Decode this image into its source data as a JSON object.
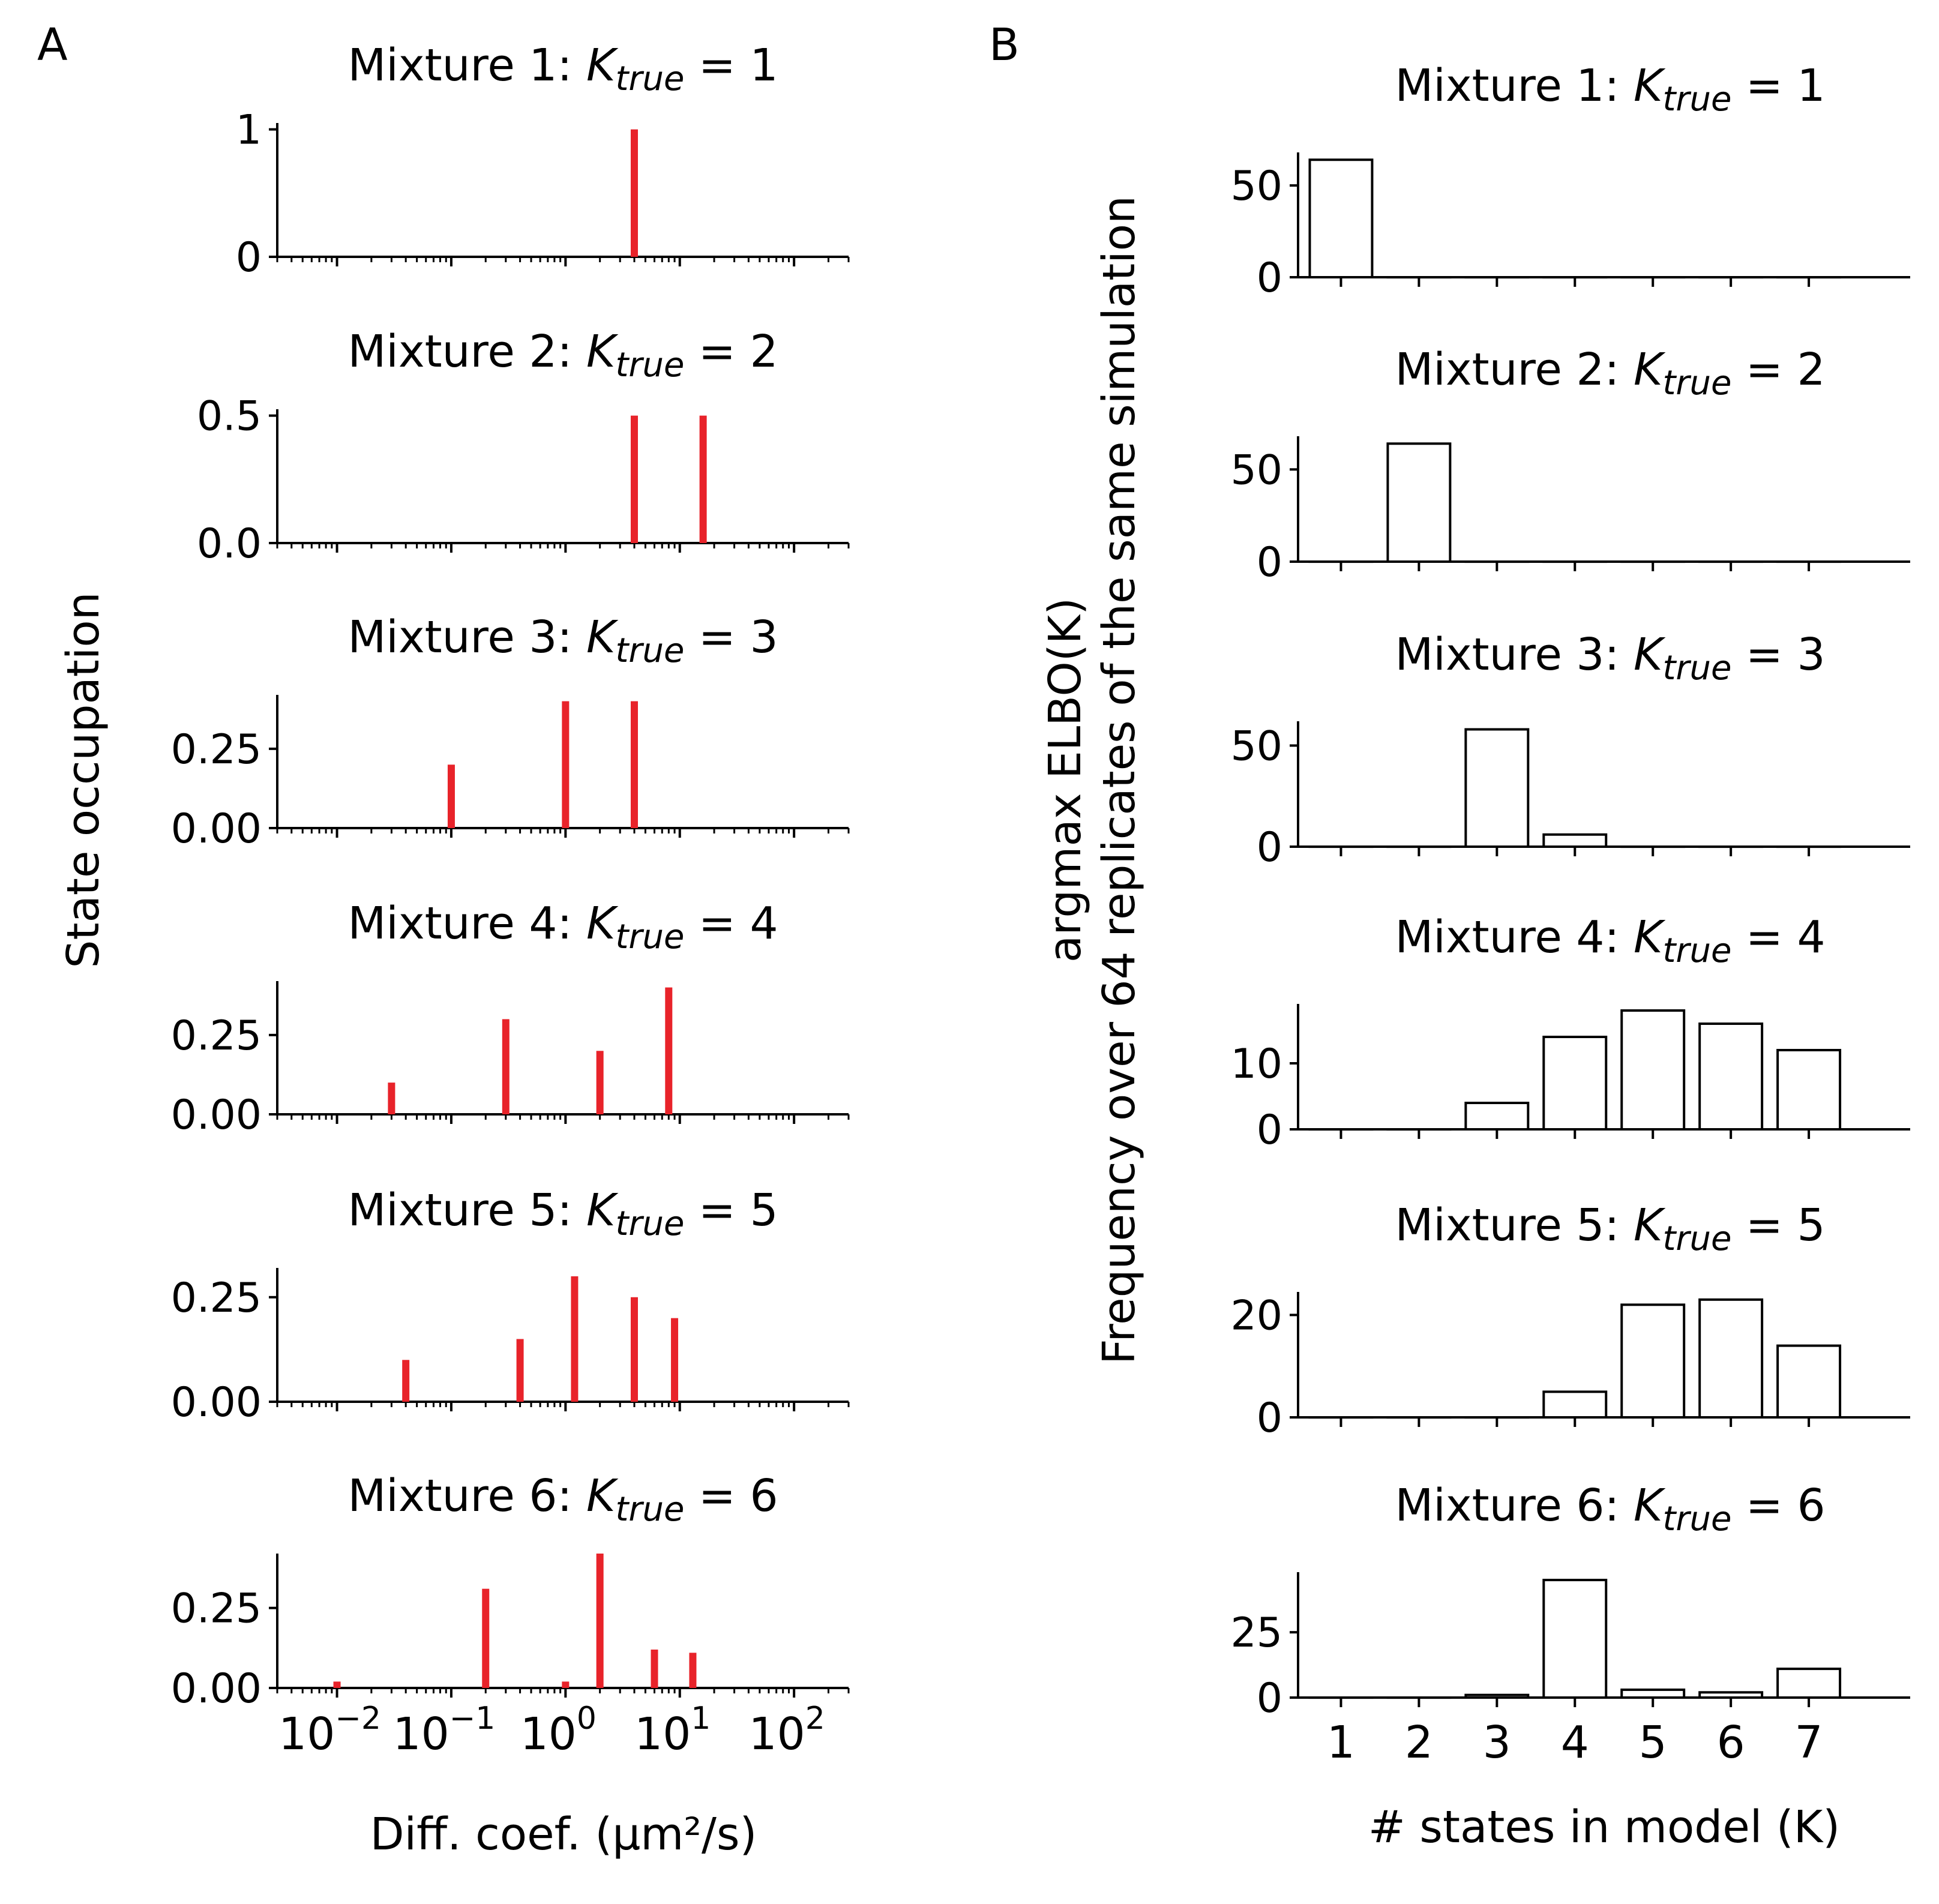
{
  "panels": {
    "A": {
      "label": "A",
      "xlabel": "Diff. coef. (μm²/s)",
      "ylabel": "State occupation",
      "x_tick_labels": [
        {
          "base": "10",
          "exp": "−2"
        },
        {
          "base": "10",
          "exp": "−1"
        },
        {
          "base": "10",
          "exp": "0"
        },
        {
          "base": "10",
          "exp": "1"
        },
        {
          "base": "10",
          "exp": "2"
        }
      ]
    },
    "B": {
      "label": "B",
      "xlabel": "# states in model (K)",
      "ylabel_line1": "argmax ELBO(K)",
      "ylabel_line2": "Frequency over 64 replicates of the same simulation"
    }
  },
  "chart_data": [
    {
      "panel": "A",
      "type": "bar",
      "x_scale": "log",
      "bar_color": "#e8232a",
      "title": "Mixture 1: K_true = 1",
      "xlim": [
        0.003,
        300
      ],
      "ylim": [
        0,
        1.05
      ],
      "yticks": [
        0,
        1
      ],
      "ytick_labels": [
        "0",
        "1"
      ],
      "series": [
        {
          "x": [
            4.0
          ],
          "values": [
            1.0
          ]
        }
      ]
    },
    {
      "panel": "A",
      "type": "bar",
      "x_scale": "log",
      "bar_color": "#e8232a",
      "title": "Mixture 2: K_true = 2",
      "xlim": [
        0.003,
        300
      ],
      "ylim": [
        0,
        0.525
      ],
      "yticks": [
        0,
        0.5
      ],
      "ytick_labels": [
        "0.0",
        "0.5"
      ],
      "series": [
        {
          "x": [
            4.0,
            16.0
          ],
          "values": [
            0.5,
            0.5
          ]
        }
      ]
    },
    {
      "panel": "A",
      "type": "bar",
      "x_scale": "log",
      "bar_color": "#e8232a",
      "title": "Mixture 3: K_true = 3",
      "xlim": [
        0.003,
        300
      ],
      "ylim": [
        0,
        0.42
      ],
      "yticks": [
        0,
        0.25
      ],
      "ytick_labels": [
        "0.00",
        "0.25"
      ],
      "series": [
        {
          "x": [
            0.1,
            1.0,
            4.0
          ],
          "values": [
            0.2,
            0.4,
            0.4
          ]
        }
      ]
    },
    {
      "panel": "A",
      "type": "bar",
      "x_scale": "log",
      "bar_color": "#e8232a",
      "title": "Mixture 4: K_true = 4",
      "xlim": [
        0.003,
        300
      ],
      "ylim": [
        0,
        0.42
      ],
      "yticks": [
        0,
        0.25
      ],
      "ytick_labels": [
        "0.00",
        "0.25"
      ],
      "series": [
        {
          "x": [
            0.03,
            0.3,
            2.0,
            8.0
          ],
          "values": [
            0.1,
            0.3,
            0.2,
            0.4
          ]
        }
      ]
    },
    {
      "panel": "A",
      "type": "bar",
      "x_scale": "log",
      "bar_color": "#e8232a",
      "title": "Mixture 5: K_true = 5",
      "xlim": [
        0.003,
        300
      ],
      "ylim": [
        0,
        0.32
      ],
      "yticks": [
        0,
        0.25
      ],
      "ytick_labels": [
        "0.00",
        "0.25"
      ],
      "series": [
        {
          "x": [
            0.04,
            0.4,
            1.2,
            4.0,
            9.0
          ],
          "values": [
            0.1,
            0.15,
            0.3,
            0.25,
            0.2
          ]
        }
      ]
    },
    {
      "panel": "A",
      "type": "bar",
      "x_scale": "log",
      "bar_color": "#e8232a",
      "title": "Mixture 6: K_true = 6",
      "xlim": [
        0.003,
        300
      ],
      "ylim": [
        0,
        0.42
      ],
      "yticks": [
        0,
        0.25
      ],
      "ytick_labels": [
        "0.00",
        "0.25"
      ],
      "series": [
        {
          "x": [
            0.01,
            0.2,
            1.0,
            2.0,
            6.0,
            13.0
          ],
          "values": [
            0.02,
            0.31,
            0.02,
            0.42,
            0.12,
            0.11
          ]
        }
      ]
    },
    {
      "panel": "B",
      "type": "bar",
      "bar_color": "#ffffff",
      "edge_color": "#000000",
      "title": "Mixture 1: K_true = 1",
      "categories": [
        "1",
        "2",
        "3",
        "4",
        "5",
        "6",
        "7"
      ],
      "ylim": [
        0,
        68
      ],
      "yticks": [
        0,
        50
      ],
      "ytick_labels": [
        "0",
        "50"
      ],
      "values": [
        64,
        0,
        0,
        0,
        0,
        0,
        0
      ]
    },
    {
      "panel": "B",
      "type": "bar",
      "bar_color": "#ffffff",
      "edge_color": "#000000",
      "title": "Mixture 2: K_true = 2",
      "categories": [
        "1",
        "2",
        "3",
        "4",
        "5",
        "6",
        "7"
      ],
      "ylim": [
        0,
        68
      ],
      "yticks": [
        0,
        50
      ],
      "ytick_labels": [
        "0",
        "50"
      ],
      "values": [
        0,
        64,
        0,
        0,
        0,
        0,
        0
      ]
    },
    {
      "panel": "B",
      "type": "bar",
      "bar_color": "#ffffff",
      "edge_color": "#000000",
      "title": "Mixture 3: K_true = 3",
      "categories": [
        "1",
        "2",
        "3",
        "4",
        "5",
        "6",
        "7"
      ],
      "ylim": [
        0,
        62
      ],
      "yticks": [
        0,
        50
      ],
      "ytick_labels": [
        "0",
        "50"
      ],
      "values": [
        0,
        0,
        58,
        6,
        0,
        0,
        0
      ]
    },
    {
      "panel": "B",
      "type": "bar",
      "bar_color": "#ffffff",
      "edge_color": "#000000",
      "title": "Mixture 4: K_true = 4",
      "categories": [
        "1",
        "2",
        "3",
        "4",
        "5",
        "6",
        "7"
      ],
      "ylim": [
        0,
        19
      ],
      "yticks": [
        0,
        10
      ],
      "ytick_labels": [
        "0",
        "10"
      ],
      "values": [
        0,
        0,
        4,
        14,
        18,
        16,
        12
      ]
    },
    {
      "panel": "B",
      "type": "bar",
      "bar_color": "#ffffff",
      "edge_color": "#000000",
      "title": "Mixture 5: K_true = 5",
      "categories": [
        "1",
        "2",
        "3",
        "4",
        "5",
        "6",
        "7"
      ],
      "ylim": [
        0,
        24.5
      ],
      "yticks": [
        0,
        20
      ],
      "ytick_labels": [
        "0",
        "20"
      ],
      "values": [
        0,
        0,
        0,
        5,
        22,
        23,
        14
      ]
    },
    {
      "panel": "B",
      "type": "bar",
      "bar_color": "#ffffff",
      "edge_color": "#000000",
      "title": "Mixture 6: K_true = 6",
      "categories": [
        "1",
        "2",
        "3",
        "4",
        "5",
        "6",
        "7"
      ],
      "ylim": [
        0,
        48
      ],
      "yticks": [
        0,
        25
      ],
      "ytick_labels": [
        "0",
        "25"
      ],
      "values": [
        0,
        0,
        1,
        45,
        3,
        2,
        11
      ]
    }
  ]
}
